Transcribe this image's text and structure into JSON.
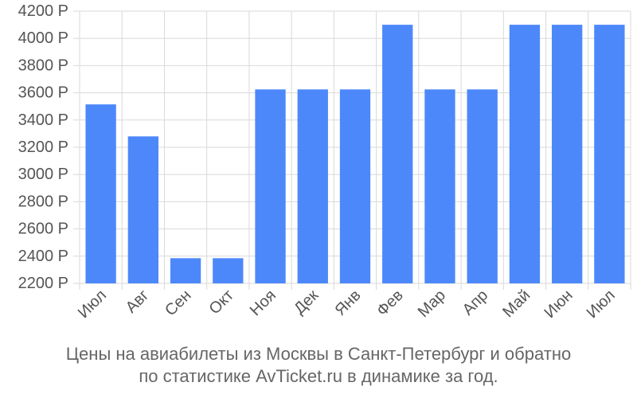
{
  "chart_data": {
    "type": "bar",
    "categories": [
      "Июл",
      "Авг",
      "Сен",
      "Окт",
      "Ноя",
      "Дек",
      "Янв",
      "Фев",
      "Мар",
      "Апр",
      "Май",
      "Июн",
      "Июл"
    ],
    "values": [
      3515,
      3280,
      2385,
      2385,
      3625,
      3625,
      3625,
      4100,
      3625,
      3625,
      4100,
      4100,
      4100
    ],
    "ylim": [
      2200,
      4200
    ],
    "yticks": [
      2200,
      2400,
      2600,
      2800,
      3000,
      3200,
      3400,
      3600,
      3800,
      4000,
      4200
    ],
    "tick_suffix": " Р",
    "grid": true,
    "bar_color": "#4d88fb",
    "caption_lines": [
      "Цены на авиабилеты из Москвы в Санкт-Петербург и обратно",
      "по статистике AvTicket.ru в динамике за год."
    ]
  }
}
